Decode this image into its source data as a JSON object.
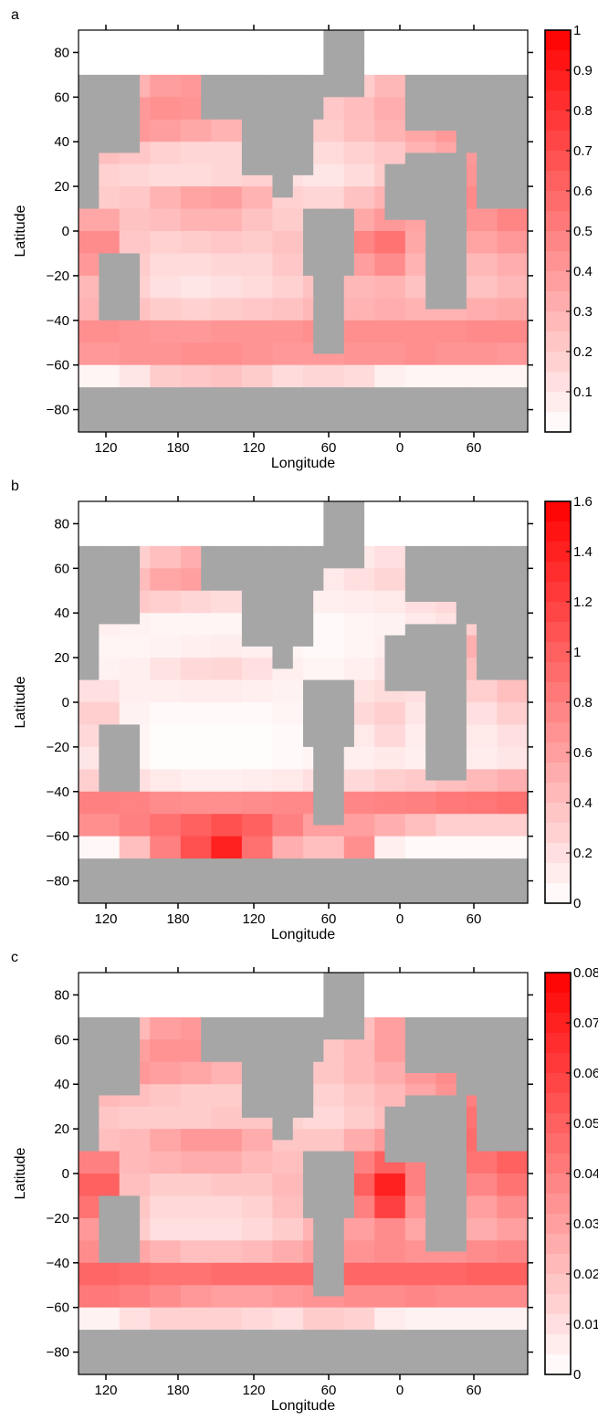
{
  "figure": {
    "land_color": "#a6a6a6",
    "ocean_colormap": [
      "#ffffff",
      "#ff0000"
    ]
  },
  "chart_data": [
    {
      "type": "heatmap",
      "panel_label": "a",
      "xlabel": "Longitude",
      "ylabel": "Latitude",
      "x_ticks": [
        "120",
        "180",
        "120",
        "60",
        "0",
        "60"
      ],
      "y_ticks": [
        "80",
        "60",
        "40",
        "20",
        "0",
        "−20",
        "−40",
        "−60",
        "−80"
      ],
      "colorbar": {
        "min": 0,
        "max": 1,
        "tick_labels": [
          "1",
          "0.9",
          "0.8",
          "0.7",
          "0.6",
          "0.5",
          "0.4",
          "0.3",
          "0.2",
          "0.1"
        ],
        "tick_values": [
          1,
          0.9,
          0.8,
          0.7,
          0.6,
          0.5,
          0.4,
          0.3,
          0.2,
          0.1
        ]
      },
      "field": {
        "lat_rows": [
          65,
          55,
          45,
          35,
          25,
          15,
          5,
          -5,
          -15,
          -25,
          -35,
          -45,
          -55,
          -65
        ],
        "values": [
          [
            0.12,
            0.3,
            0.38,
            0.4,
            0.37,
            0.32,
            0.22,
            0.18,
            0.2,
            0.28,
            0.33,
            0.36,
            0.38,
            0.4
          ],
          [
            0.28,
            0.4,
            0.43,
            0.42,
            0.4,
            0.35,
            0.25,
            0.22,
            0.26,
            0.32,
            0.38,
            0.4,
            0.42,
            0.44
          ],
          [
            0.36,
            0.4,
            0.38,
            0.34,
            0.3,
            0.24,
            0.18,
            0.2,
            0.25,
            0.3,
            0.35,
            0.4,
            0.42,
            0.46
          ],
          [
            0.25,
            0.22,
            0.18,
            0.16,
            0.16,
            0.18,
            0.12,
            0.14,
            0.18,
            0.22,
            0.3,
            0.35,
            0.4,
            0.48
          ],
          [
            0.18,
            0.16,
            0.14,
            0.14,
            0.16,
            0.18,
            0.12,
            0.1,
            0.14,
            0.2,
            0.28,
            0.32,
            0.42,
            0.55
          ],
          [
            0.2,
            0.22,
            0.3,
            0.36,
            0.38,
            0.3,
            0.18,
            0.16,
            0.24,
            0.3,
            0.34,
            0.4,
            0.46,
            0.55
          ],
          [
            0.35,
            0.24,
            0.26,
            0.3,
            0.3,
            0.24,
            0.2,
            0.26,
            0.34,
            0.4,
            0.36,
            0.38,
            0.42,
            0.48
          ],
          [
            0.45,
            0.22,
            0.18,
            0.2,
            0.22,
            0.2,
            0.24,
            0.32,
            0.48,
            0.55,
            0.34,
            0.3,
            0.36,
            0.4
          ],
          [
            0.4,
            0.2,
            0.14,
            0.14,
            0.16,
            0.16,
            0.22,
            0.3,
            0.38,
            0.45,
            0.3,
            0.24,
            0.28,
            0.32
          ],
          [
            0.28,
            0.18,
            0.12,
            0.1,
            0.12,
            0.14,
            0.18,
            0.24,
            0.28,
            0.3,
            0.24,
            0.22,
            0.24,
            0.28
          ],
          [
            0.3,
            0.24,
            0.2,
            0.18,
            0.2,
            0.22,
            0.24,
            0.28,
            0.3,
            0.32,
            0.3,
            0.3,
            0.32,
            0.34
          ],
          [
            0.44,
            0.42,
            0.4,
            0.4,
            0.42,
            0.42,
            0.42,
            0.44,
            0.44,
            0.44,
            0.44,
            0.44,
            0.46,
            0.46
          ],
          [
            0.4,
            0.42,
            0.42,
            0.44,
            0.44,
            0.42,
            0.4,
            0.4,
            0.42,
            0.42,
            0.44,
            0.42,
            0.42,
            0.4
          ],
          [
            0.04,
            0.1,
            0.2,
            0.22,
            0.24,
            0.2,
            0.14,
            0.16,
            0.14,
            0.06,
            0.04,
            0.04,
            0.04,
            0.04
          ]
        ]
      }
    },
    {
      "type": "heatmap",
      "panel_label": "b",
      "xlabel": "Longitude",
      "ylabel": "Latitude",
      "x_ticks": [
        "120",
        "180",
        "120",
        "60",
        "0",
        "60"
      ],
      "y_ticks": [
        "80",
        "60",
        "40",
        "20",
        "0",
        "−20",
        "−40",
        "−60",
        "−80"
      ],
      "colorbar": {
        "min": 0,
        "max": 1.6,
        "tick_labels": [
          "1.6",
          "1.4",
          "1.2",
          "1",
          "0.8",
          "0.6",
          "0.4",
          "0.2",
          "0"
        ],
        "tick_values": [
          1.6,
          1.4,
          1.2,
          1,
          0.8,
          0.6,
          0.4,
          0.2,
          0
        ]
      },
      "field": {
        "lat_rows": [
          65,
          55,
          45,
          35,
          25,
          15,
          5,
          -5,
          -15,
          -25,
          -35,
          -45,
          -55,
          -65
        ],
        "values": [
          [
            0.1,
            0.3,
            0.4,
            0.5,
            0.4,
            0.3,
            0.16,
            0.1,
            0.14,
            0.2,
            0.24,
            0.3,
            0.32,
            0.36
          ],
          [
            0.28,
            0.42,
            0.55,
            0.6,
            0.5,
            0.4,
            0.2,
            0.14,
            0.2,
            0.26,
            0.3,
            0.34,
            0.36,
            0.4
          ],
          [
            0.3,
            0.34,
            0.3,
            0.26,
            0.22,
            0.16,
            0.1,
            0.1,
            0.12,
            0.14,
            0.2,
            0.24,
            0.28,
            0.36
          ],
          [
            0.1,
            0.08,
            0.06,
            0.06,
            0.06,
            0.06,
            0.04,
            0.04,
            0.06,
            0.08,
            0.14,
            0.18,
            0.3,
            0.5
          ],
          [
            0.06,
            0.06,
            0.08,
            0.1,
            0.12,
            0.1,
            0.06,
            0.04,
            0.06,
            0.1,
            0.18,
            0.26,
            0.5,
            0.8
          ],
          [
            0.08,
            0.1,
            0.18,
            0.24,
            0.26,
            0.2,
            0.1,
            0.06,
            0.1,
            0.16,
            0.22,
            0.3,
            0.4,
            0.6
          ],
          [
            0.2,
            0.1,
            0.1,
            0.12,
            0.12,
            0.1,
            0.08,
            0.1,
            0.18,
            0.22,
            0.2,
            0.24,
            0.3,
            0.4
          ],
          [
            0.3,
            0.08,
            0.04,
            0.04,
            0.04,
            0.04,
            0.06,
            0.12,
            0.24,
            0.3,
            0.16,
            0.16,
            0.2,
            0.3
          ],
          [
            0.24,
            0.06,
            0.02,
            0.02,
            0.02,
            0.02,
            0.04,
            0.08,
            0.14,
            0.24,
            0.12,
            0.1,
            0.14,
            0.2
          ],
          [
            0.16,
            0.06,
            0.02,
            0.02,
            0.02,
            0.02,
            0.04,
            0.06,
            0.1,
            0.14,
            0.1,
            0.1,
            0.12,
            0.16
          ],
          [
            0.3,
            0.2,
            0.14,
            0.1,
            0.1,
            0.12,
            0.14,
            0.2,
            0.24,
            0.3,
            0.34,
            0.4,
            0.44,
            0.5
          ],
          [
            0.8,
            0.78,
            0.72,
            0.7,
            0.7,
            0.72,
            0.74,
            0.74,
            0.76,
            0.78,
            0.8,
            0.84,
            0.86,
            0.9
          ],
          [
            0.7,
            0.8,
            0.9,
            1.0,
            1.1,
            1.0,
            0.8,
            0.6,
            0.6,
            0.5,
            0.4,
            0.3,
            0.3,
            0.3
          ],
          [
            0.05,
            0.4,
            0.8,
            1.1,
            1.4,
            0.9,
            0.5,
            0.4,
            0.7,
            0.1,
            0.04,
            0.04,
            0.04,
            0.04
          ]
        ]
      }
    },
    {
      "type": "heatmap",
      "panel_label": "c",
      "xlabel": "Longitude",
      "ylabel": "Latitude",
      "x_ticks": [
        "120",
        "180",
        "120",
        "60",
        "0",
        "60"
      ],
      "y_ticks": [
        "80",
        "60",
        "40",
        "20",
        "0",
        "−20",
        "−40",
        "−60",
        "−80"
      ],
      "colorbar": {
        "min": 0,
        "max": 0.08,
        "tick_labels": [
          "0.08",
          "0.07",
          "0.06",
          "0.05",
          "0.04",
          "0.03",
          "0.02",
          "0.01",
          "0"
        ],
        "tick_values": [
          0.08,
          0.07,
          0.06,
          0.05,
          0.04,
          0.03,
          0.02,
          0.01,
          0
        ]
      },
      "field": {
        "lat_rows": [
          65,
          55,
          45,
          35,
          25,
          15,
          5,
          -5,
          -15,
          -25,
          -35,
          -45,
          -55,
          -65
        ],
        "values": [
          [
            0.006,
            0.022,
            0.03,
            0.032,
            0.03,
            0.026,
            0.018,
            0.016,
            0.02,
            0.03,
            0.034,
            0.036,
            0.038,
            0.04
          ],
          [
            0.02,
            0.03,
            0.034,
            0.034,
            0.032,
            0.028,
            0.02,
            0.018,
            0.022,
            0.03,
            0.036,
            0.04,
            0.042,
            0.044
          ],
          [
            0.03,
            0.032,
            0.03,
            0.028,
            0.024,
            0.02,
            0.016,
            0.018,
            0.022,
            0.026,
            0.032,
            0.036,
            0.04,
            0.044
          ],
          [
            0.022,
            0.02,
            0.018,
            0.016,
            0.016,
            0.016,
            0.012,
            0.014,
            0.018,
            0.022,
            0.028,
            0.034,
            0.04,
            0.048
          ],
          [
            0.018,
            0.016,
            0.016,
            0.016,
            0.018,
            0.018,
            0.014,
            0.012,
            0.016,
            0.02,
            0.028,
            0.034,
            0.044,
            0.06
          ],
          [
            0.02,
            0.022,
            0.028,
            0.032,
            0.032,
            0.026,
            0.018,
            0.018,
            0.026,
            0.032,
            0.036,
            0.04,
            0.046,
            0.056
          ],
          [
            0.04,
            0.022,
            0.024,
            0.026,
            0.026,
            0.022,
            0.02,
            0.028,
            0.04,
            0.05,
            0.04,
            0.04,
            0.044,
            0.05
          ],
          [
            0.05,
            0.02,
            0.016,
            0.016,
            0.018,
            0.018,
            0.022,
            0.034,
            0.05,
            0.07,
            0.04,
            0.032,
            0.038,
            0.044
          ],
          [
            0.044,
            0.018,
            0.012,
            0.012,
            0.012,
            0.014,
            0.02,
            0.03,
            0.04,
            0.06,
            0.034,
            0.028,
            0.03,
            0.036
          ],
          [
            0.032,
            0.016,
            0.01,
            0.01,
            0.01,
            0.012,
            0.016,
            0.024,
            0.03,
            0.036,
            0.028,
            0.024,
            0.026,
            0.03
          ],
          [
            0.036,
            0.028,
            0.024,
            0.02,
            0.02,
            0.022,
            0.026,
            0.03,
            0.034,
            0.036,
            0.034,
            0.034,
            0.036,
            0.038
          ],
          [
            0.048,
            0.046,
            0.044,
            0.044,
            0.046,
            0.046,
            0.046,
            0.046,
            0.048,
            0.048,
            0.048,
            0.048,
            0.05,
            0.05
          ],
          [
            0.042,
            0.04,
            0.036,
            0.032,
            0.03,
            0.03,
            0.032,
            0.034,
            0.036,
            0.036,
            0.038,
            0.036,
            0.036,
            0.036
          ],
          [
            0.004,
            0.01,
            0.014,
            0.014,
            0.014,
            0.012,
            0.01,
            0.016,
            0.014,
            0.006,
            0.004,
            0.004,
            0.004,
            0.004
          ]
        ]
      }
    }
  ]
}
